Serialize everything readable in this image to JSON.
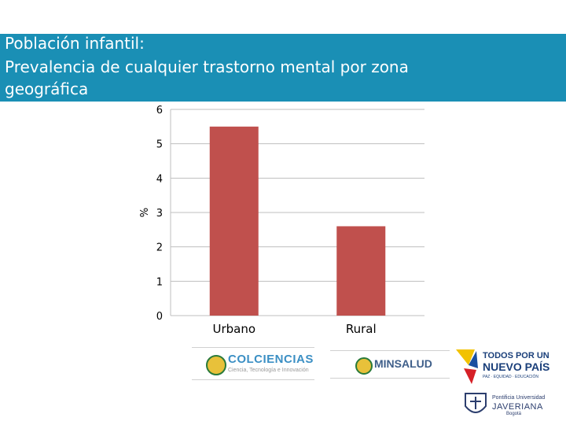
{
  "header": {
    "title_lines": [
      "Población infantil:",
      "Prevalencia de cualquier trastorno mental por zona",
      "geográfica"
    ],
    "background": "#1a8fb5"
  },
  "chart_data": {
    "type": "bar",
    "categories": [
      "Urbano",
      "Rural"
    ],
    "values": [
      5.5,
      2.6
    ],
    "ylabel": "%",
    "xlabel": "",
    "ylim": [
      0,
      6
    ],
    "yticks": [
      0,
      1,
      2,
      3,
      4,
      5,
      6
    ],
    "grid": true,
    "bar_color": "#c0504d"
  },
  "logos": {
    "colciencias": {
      "name": "COLCIENCIAS",
      "tagline": "Ciencia, Tecnología e Innovación"
    },
    "minsalud": {
      "name": "MINSALUD"
    },
    "todos": {
      "line1": "TODOS POR UN",
      "line2": "NUEVO PAÍS",
      "line3": "PAZ · EQUIDAD · EDUCACIÓN"
    },
    "javeriana": {
      "line1": "Pontificia Universidad",
      "line2": "JAVERIANA",
      "line3": "Bogotá"
    }
  }
}
